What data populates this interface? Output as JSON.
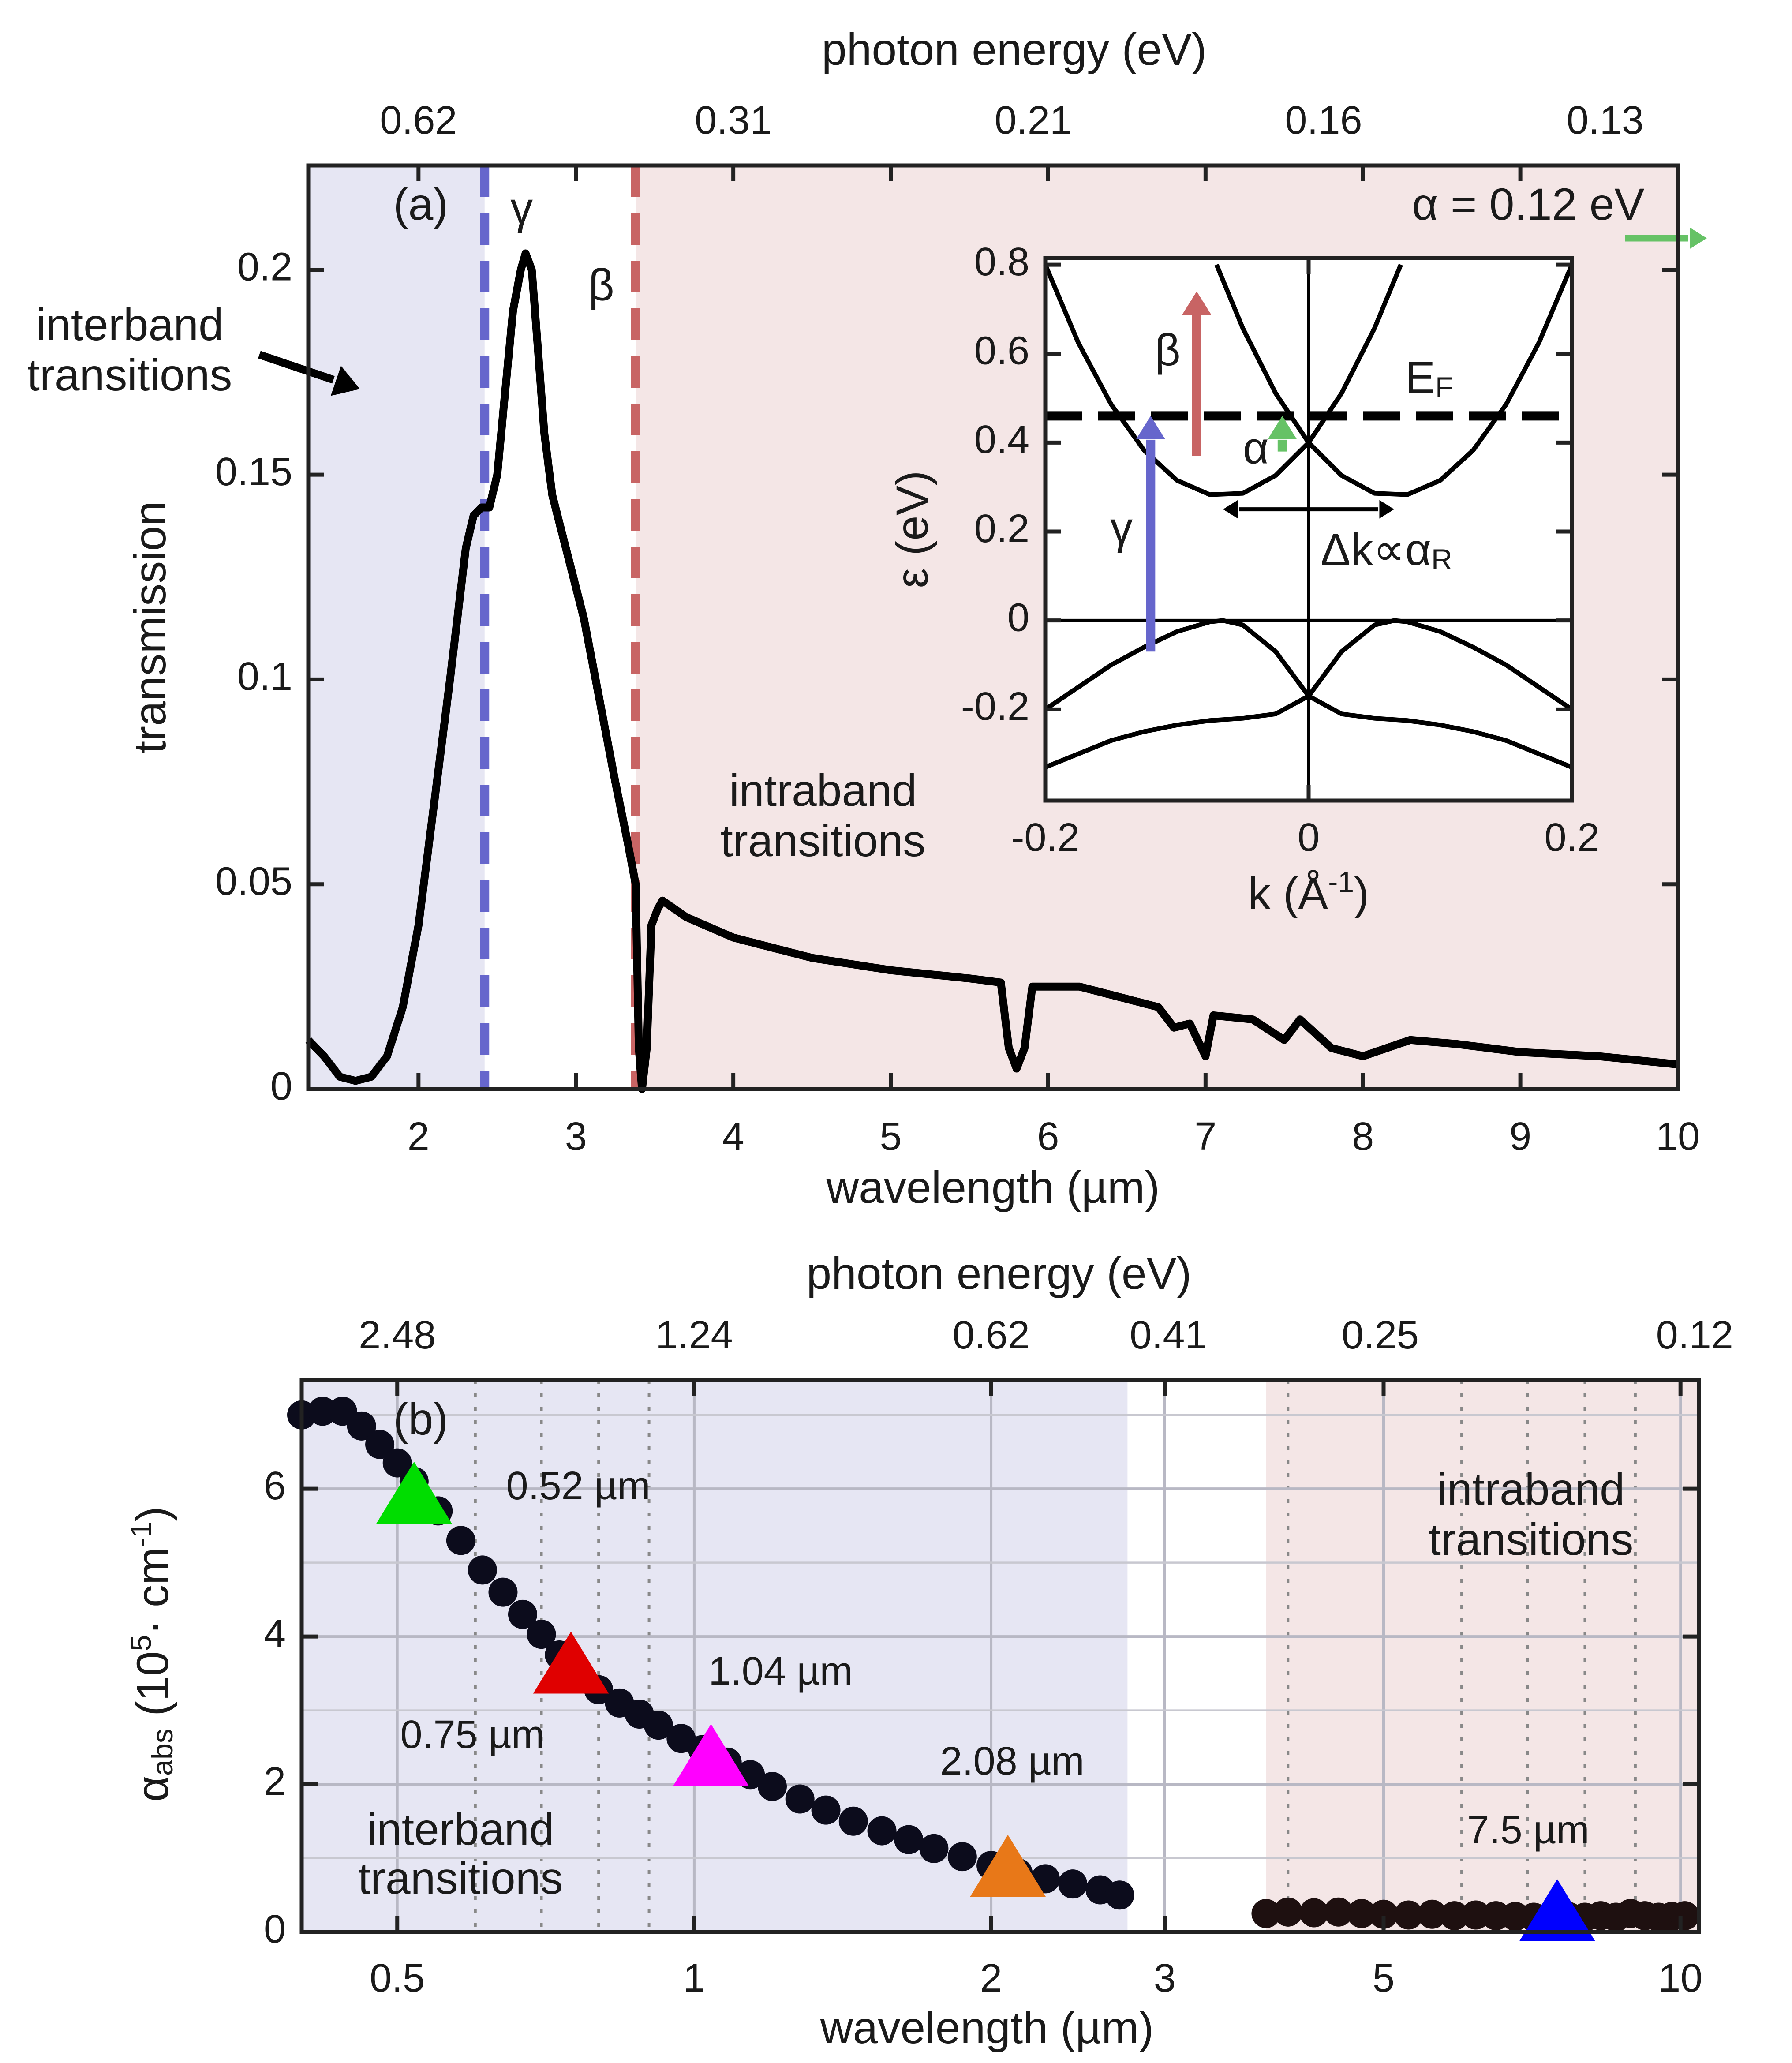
{
  "chart_data": [
    {
      "type": "line",
      "label": "(a)",
      "xlabel": "wavelength (µm)",
      "ylabel": "transmission",
      "x2label": "photon energy (eV)",
      "xlim": [
        1.3,
        10
      ],
      "ylim": [
        0,
        0.2255
      ],
      "xticks": [
        2,
        3,
        4,
        5,
        6,
        7,
        8,
        9,
        10
      ],
      "yticks": [
        0,
        0.05,
        0.1,
        0.15,
        0.2
      ],
      "x2scale": "reciprocal",
      "x2lim": [
        0.954,
        0.124
      ],
      "x2ticks": [
        0.62,
        0.31,
        0.21,
        0.16,
        0.13
      ],
      "grid": false,
      "color": "#000000",
      "x": [
        1.3,
        1.4,
        1.5,
        1.6,
        1.7,
        1.8,
        1.9,
        2.0,
        2.1,
        2.2,
        2.3,
        2.35,
        2.4,
        2.45,
        2.5,
        2.55,
        2.6,
        2.65,
        2.68,
        2.72,
        2.76,
        2.8,
        2.85,
        2.95,
        3.05,
        3.15,
        3.25,
        3.33,
        3.38,
        3.4,
        3.42,
        3.45,
        3.48,
        3.52,
        3.55,
        3.7,
        4.0,
        4.5,
        5.0,
        5.5,
        5.7,
        5.75,
        5.8,
        5.85,
        5.9,
        6.2,
        6.5,
        6.7,
        6.8,
        6.9,
        7.0,
        7.05,
        7.3,
        7.5,
        7.6,
        7.8,
        8.0,
        8.3,
        8.6,
        9.0,
        9.5,
        10
      ],
      "values": [
        0.012,
        0.008,
        0.003,
        0.002,
        0.003,
        0.008,
        0.02,
        0.04,
        0.07,
        0.1,
        0.132,
        0.14,
        0.142,
        0.142,
        0.15,
        0.17,
        0.19,
        0.2,
        0.204,
        0.2,
        0.18,
        0.16,
        0.145,
        0.13,
        0.115,
        0.095,
        0.075,
        0.06,
        0.05,
        0.01,
        0,
        0.01,
        0.04,
        0.044,
        0.046,
        0.042,
        0.037,
        0.032,
        0.029,
        0.027,
        0.026,
        0.01,
        0.005,
        0.01,
        0.025,
        0.025,
        0.022,
        0.02,
        0.015,
        0.016,
        0.008,
        0.018,
        0.017,
        0.012,
        0.017,
        0.01,
        0.008,
        0.012,
        0.011,
        0.009,
        0.008,
        0.006
      ],
      "regions": [
        {
          "xlim": [
            1.3,
            2.42
          ],
          "color": "#e6e6f3"
        },
        {
          "xlim": [
            3.38,
            10
          ],
          "color": "#f4e6e6"
        }
      ],
      "vlines": [
        {
          "x": 2.42,
          "color": "#6666cc",
          "label": "γ"
        },
        {
          "x": 3.38,
          "color": "#c86464",
          "label": "β"
        }
      ],
      "interband_label": [
        "interband",
        "transitions"
      ],
      "intraband_label": [
        "intraband",
        "transitions"
      ],
      "alpha_label": "α = 0.12 eV",
      "alpha_color": "#66c266"
    },
    {
      "type": "line",
      "xlabel": [
        "k (Å",
        "-1",
        ")"
      ],
      "ylabel": "ε (eV)",
      "xlim": [
        -0.2,
        0.2
      ],
      "ylim": [
        -0.405,
        0.815
      ],
      "xticks": [
        -0.2,
        0,
        0.2
      ],
      "yticks": [
        -0.2,
        0,
        0.2,
        0.4,
        0.6,
        0.8
      ],
      "grid": false,
      "series": [
        {
          "color": "#000000",
          "x": [
            -0.2,
            -0.175,
            -0.15,
            -0.125,
            -0.1,
            -0.075,
            -0.05,
            -0.025,
            0,
            0.025,
            0.05,
            0.07
          ],
          "values": [
            0.8,
            0.625,
            0.486,
            0.383,
            0.315,
            0.283,
            0.286,
            0.326,
            0.4,
            0.511,
            0.657,
            0.8
          ]
        },
        {
          "color": "#000000",
          "x": [
            -0.07,
            -0.05,
            -0.025,
            0,
            0.025,
            0.05,
            0.075,
            0.1,
            0.125,
            0.15,
            0.175,
            0.2
          ],
          "values": [
            0.8,
            0.657,
            0.511,
            0.4,
            0.326,
            0.286,
            0.283,
            0.315,
            0.383,
            0.486,
            0.625,
            0.8
          ]
        },
        {
          "color": "#000000",
          "x": [
            -0.2,
            -0.175,
            -0.15,
            -0.125,
            -0.1,
            -0.075,
            -0.065,
            -0.05,
            -0.025,
            0,
            0.025,
            0.05,
            0.075,
            0.1,
            0.125,
            0.15,
            0.175,
            0.2
          ],
          "values": [
            -0.2,
            -0.15,
            -0.1,
            -0.06,
            -0.025,
            -0.003,
            0,
            -0.01,
            -0.07,
            -0.17,
            -0.21,
            -0.22,
            -0.225,
            -0.235,
            -0.25,
            -0.27,
            -0.3,
            -0.33
          ]
        },
        {
          "color": "#000000",
          "x": [
            -0.2,
            -0.175,
            -0.15,
            -0.125,
            -0.1,
            -0.075,
            -0.05,
            -0.025,
            0,
            0.025,
            0.05,
            0.065,
            0.075,
            0.1,
            0.125,
            0.15,
            0.175,
            0.2
          ],
          "values": [
            -0.33,
            -0.3,
            -0.27,
            -0.25,
            -0.235,
            -0.225,
            -0.22,
            -0.21,
            -0.17,
            -0.07,
            -0.01,
            0,
            -0.003,
            -0.025,
            -0.06,
            -0.1,
            -0.15,
            -0.2
          ]
        }
      ],
      "fermi_level": 0.46,
      "fermi_label": [
        "E",
        "F"
      ],
      "arrows": [
        {
          "k": -0.12,
          "from": -0.07,
          "to": 0.46,
          "color": "#6666cc",
          "label": "γ"
        },
        {
          "k": -0.085,
          "from": 0.37,
          "to": 0.74,
          "color": "#c86464",
          "label": "β"
        },
        {
          "k": -0.02,
          "from": 0.38,
          "to": 0.46,
          "color": "#66c266",
          "label": "α"
        }
      ],
      "delta_k": {
        "from": -0.065,
        "to": 0.065,
        "at": 0.25,
        "label": [
          "Δk∝α",
          "R"
        ]
      }
    },
    {
      "type": "scatter",
      "label": "(b)",
      "xlabel": "wavelength (µm)",
      "ylabel": [
        "α",
        "abs",
        " (10",
        "5",
        "· cm",
        "-1",
        ")"
      ],
      "x2label": "photon energy (eV)",
      "xscale": "log",
      "xlim": [
        0.4,
        10.44
      ],
      "ylim": [
        0,
        7.47
      ],
      "xticks": [
        0.5,
        1,
        2,
        3,
        5,
        10
      ],
      "xminor": [
        0.6,
        0.7,
        0.8,
        0.9,
        4,
        6,
        7,
        8,
        9
      ],
      "yticks": [
        0,
        2,
        4,
        6
      ],
      "yminor": [
        1,
        3,
        5,
        7
      ],
      "x2scale": "log",
      "x2lim": [
        3.1,
        0.1188
      ],
      "x2ticks": [
        2.48,
        1.24,
        0.62,
        0.41,
        0.25,
        0.12
      ],
      "grid": true,
      "regions": [
        {
          "xlim": [
            0.4,
            2.75
          ],
          "color": "#e6e6f3"
        },
        {
          "xlim": [
            3.8,
            10.44
          ],
          "color": "#f4e6e6"
        }
      ],
      "series": [
        {
          "color": "#0c0c1c",
          "x": [
            0.4,
            0.42,
            0.44,
            0.46,
            0.48,
            0.5,
            0.52,
            0.55,
            0.58,
            0.61,
            0.64,
            0.67,
            0.7,
            0.73,
            0.76,
            0.8,
            0.84,
            0.88,
            0.92,
            0.97,
            1.02,
            1.08,
            1.14,
            1.2,
            1.28,
            1.36,
            1.45,
            1.55,
            1.65,
            1.75,
            1.87,
            2.0,
            2.13,
            2.27,
            2.42,
            2.58,
            2.7
          ],
          "values": [
            7.0,
            7.05,
            7.05,
            6.85,
            6.6,
            6.35,
            6.1,
            5.7,
            5.3,
            4.9,
            4.6,
            4.3,
            4.03,
            3.75,
            3.5,
            3.28,
            3.1,
            2.95,
            2.8,
            2.62,
            2.47,
            2.3,
            2.13,
            1.97,
            1.8,
            1.65,
            1.5,
            1.37,
            1.25,
            1.13,
            1.02,
            0.9,
            0.8,
            0.72,
            0.65,
            0.57,
            0.5
          ]
        },
        {
          "color": "#1e1010",
          "x": [
            3.8,
            4.0,
            4.25,
            4.5,
            4.75,
            5.0,
            5.3,
            5.6,
            5.9,
            6.2,
            6.5,
            6.8,
            7.1,
            7.4,
            7.7,
            8.0,
            8.3,
            8.6,
            8.9,
            9.2,
            9.5,
            9.8,
            10.1
          ],
          "values": [
            0.25,
            0.27,
            0.26,
            0.27,
            0.25,
            0.24,
            0.23,
            0.24,
            0.22,
            0.23,
            0.22,
            0.21,
            0.2,
            0.22,
            0.21,
            0.2,
            0.22,
            0.2,
            0.25,
            0.22,
            0.2,
            0.21,
            0.22
          ]
        }
      ],
      "markers": [
        {
          "name": "0.52 µm",
          "x": 0.52,
          "y": 5.9,
          "color": "#00dd00"
        },
        {
          "name": "0.75 µm",
          "x": 0.75,
          "y": 3.6,
          "color": "#e00000"
        },
        {
          "name": "1.04 µm",
          "x": 1.04,
          "y": 2.35,
          "color": "#ff00ff"
        },
        {
          "name": "2.08 µm",
          "x": 2.08,
          "y": 0.85,
          "color": "#e87818"
        },
        {
          "name": "7.5 µm",
          "x": 7.5,
          "y": 0.25,
          "color": "#0000ff"
        }
      ],
      "interband_label": [
        "interband",
        "transitions"
      ],
      "intraband_label": [
        "intraband",
        "transitions"
      ]
    }
  ]
}
